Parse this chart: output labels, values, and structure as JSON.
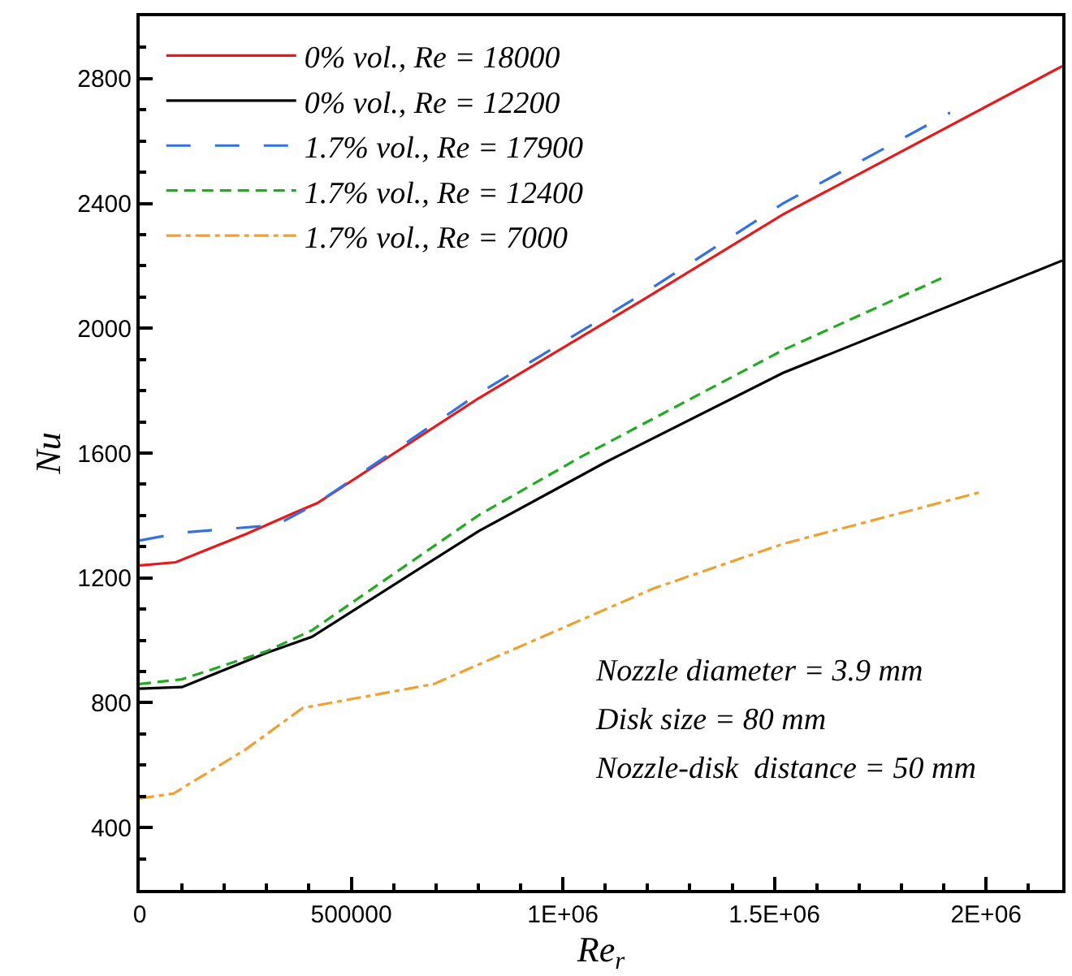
{
  "chart_data": {
    "type": "line",
    "xlabel": "Re$_{r}$",
    "ylabel": "Nu",
    "xlim": [
      0,
      2180000
    ],
    "ylim": [
      200,
      3000
    ],
    "xticks": [
      0,
      500000,
      {
        "value": 1000000,
        "label": "1E+06"
      },
      {
        "value": 1500000,
        "label": "1.5E+06"
      },
      {
        "value": 2000000,
        "label": "2E+06"
      }
    ],
    "yticks": [
      400,
      800,
      1200,
      1600,
      2000,
      2400,
      2800
    ],
    "legend": "top left",
    "marker": "none",
    "annotations": [
      "Nozzle diameter = 3.9 mm",
      "Disk size = 80 mm",
      "Nozzle-disk  distance = 50 mm"
    ],
    "series": [
      {
        "name": "0% vol., Re = 18000",
        "color": "#e41a1c",
        "line_style": "solid",
        "x": [
          0,
          85000,
          250000,
          358000,
          420000,
          800000,
          1200000,
          1520000,
          2180000
        ],
        "values": [
          1240,
          1250,
          1340,
          1404,
          1440,
          1775,
          2100,
          2365,
          2840
        ]
      },
      {
        "name": "0% vol., Re = 12200",
        "color": "#000000",
        "line_style": "solid",
        "x": [
          0,
          100000,
          300000,
          407000,
          801000,
          1100000,
          1520000,
          2180000
        ],
        "values": [
          845,
          850,
          960,
          1011,
          1350,
          1570,
          1857,
          2217
        ]
      },
      {
        "name": "1.7% vol., Re = 17900",
        "color": "#3370e0",
        "line_style": "longdash",
        "x": [
          0,
          100000,
          324000,
          420000,
          800000,
          1200000,
          1520000,
          1915000
        ],
        "values": [
          1320,
          1345,
          1370,
          1440,
          1790,
          2120,
          2400,
          2691
        ]
      },
      {
        "name": "1.7% vol., Re = 12400",
        "color": "#22aa22",
        "line_style": "dashed",
        "x": [
          0,
          100000,
          300000,
          407000,
          800000,
          1040000,
          1520000,
          1894000
        ],
        "values": [
          860,
          875,
          965,
          1032,
          1400,
          1586,
          1930,
          2160
        ]
      },
      {
        "name": "1.7% vol., Re = 7000",
        "color": "#f0a030",
        "line_style": "dashdot",
        "x": [
          0,
          80000,
          250000,
          385000,
          695000,
          1214000,
          1520000,
          1993000
        ],
        "values": [
          493,
          509,
          650,
          783,
          860,
          1166,
          1309,
          1477
        ]
      }
    ]
  }
}
